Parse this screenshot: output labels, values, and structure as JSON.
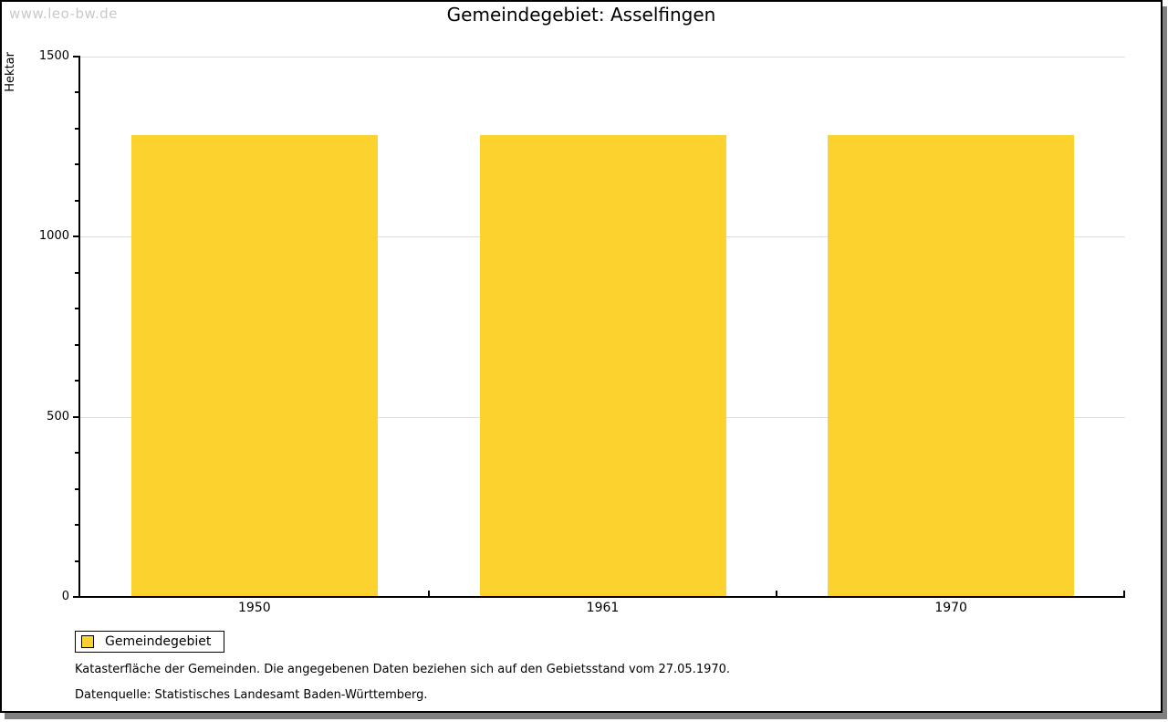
{
  "watermark": "www.leo-bw.de",
  "chart_data": {
    "type": "bar",
    "title": "Gemeindegebiet: Asselfingen",
    "categories": [
      "1950",
      "1961",
      "1970"
    ],
    "series": [
      {
        "name": "Gemeindegebiet",
        "values": [
          1283,
          1283,
          1283
        ]
      }
    ],
    "xlabel": "",
    "ylabel": "Hektar",
    "ylim": [
      0,
      1500
    ],
    "y_ticks_major": [
      0,
      500,
      1000,
      1500
    ],
    "y_tick_minor_step": 100,
    "grid": "horizontal-major",
    "legend_position": "bottom-left",
    "bar_color": "#FCD32E",
    "grid_color": "#dcdcdc",
    "axis_color": "#000000"
  },
  "footnotes": [
    "Katasterfläche der Gemeinden. Die angegebenen Daten beziehen sich auf den Gebietsstand vom 27.05.1970.",
    "Datenquelle: Statistisches Landesamt Baden-Württemberg."
  ]
}
